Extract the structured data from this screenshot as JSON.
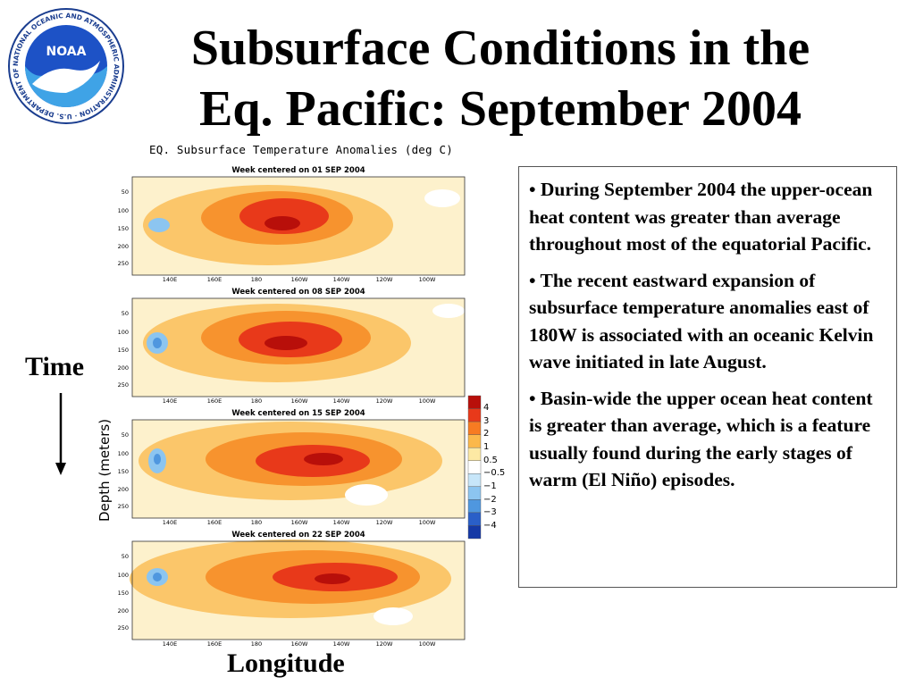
{
  "slide": {
    "title_line1": "Subsurface Conditions in the",
    "title_line2": "Eq. Pacific: September 2004"
  },
  "logo": {
    "name": "NOAA",
    "ring_text": "NATIONAL OCEANIC AND ATMOSPHERIC ADMINISTRATION · U.S. DEPARTMENT OF COMMERCE ·"
  },
  "figure": {
    "title": "EQ. Subsurface Temperature Anomalies (deg C)",
    "panels": [
      {
        "title": "Week centered on 01 SEP 2004"
      },
      {
        "title": "Week centered on 08 SEP 2004"
      },
      {
        "title": "Week centered on 15 SEP 2004"
      },
      {
        "title": "Week centered on 22 SEP 2004"
      }
    ],
    "x_ticks": [
      "140E",
      "160E",
      "180",
      "160W",
      "140W",
      "120W",
      "100W"
    ],
    "y_ticks": [
      "50",
      "100",
      "150",
      "200",
      "250"
    ],
    "y_axis_label": "Depth (meters)",
    "colorbar": {
      "labels": [
        "4",
        "3",
        "2",
        "1",
        "0.5",
        "−0.5",
        "−1",
        "−2",
        "−3",
        "−4"
      ],
      "colors": [
        "#b80f0a",
        "#e8391a",
        "#f77b22",
        "#fbb84b",
        "#fde9a4",
        "#ffffff",
        "#c7e6f9",
        "#8cc5f0",
        "#4f97df",
        "#2a5fc8",
        "#1539a6"
      ]
    }
  },
  "labels": {
    "time": "Time",
    "longitude": "Longitude"
  },
  "bullets": [
    "• During September 2004 the upper-ocean heat content was greater than average throughout most of the equatorial Pacific.",
    "• The recent eastward expansion of subsurface temperature anomalies east of 180W is associated with an oceanic Kelvin wave initiated in late August.",
    "• Basin-wide the upper ocean heat content is greater than average, which is a feature usually found during the early stages of warm (El Niño) episodes."
  ]
}
